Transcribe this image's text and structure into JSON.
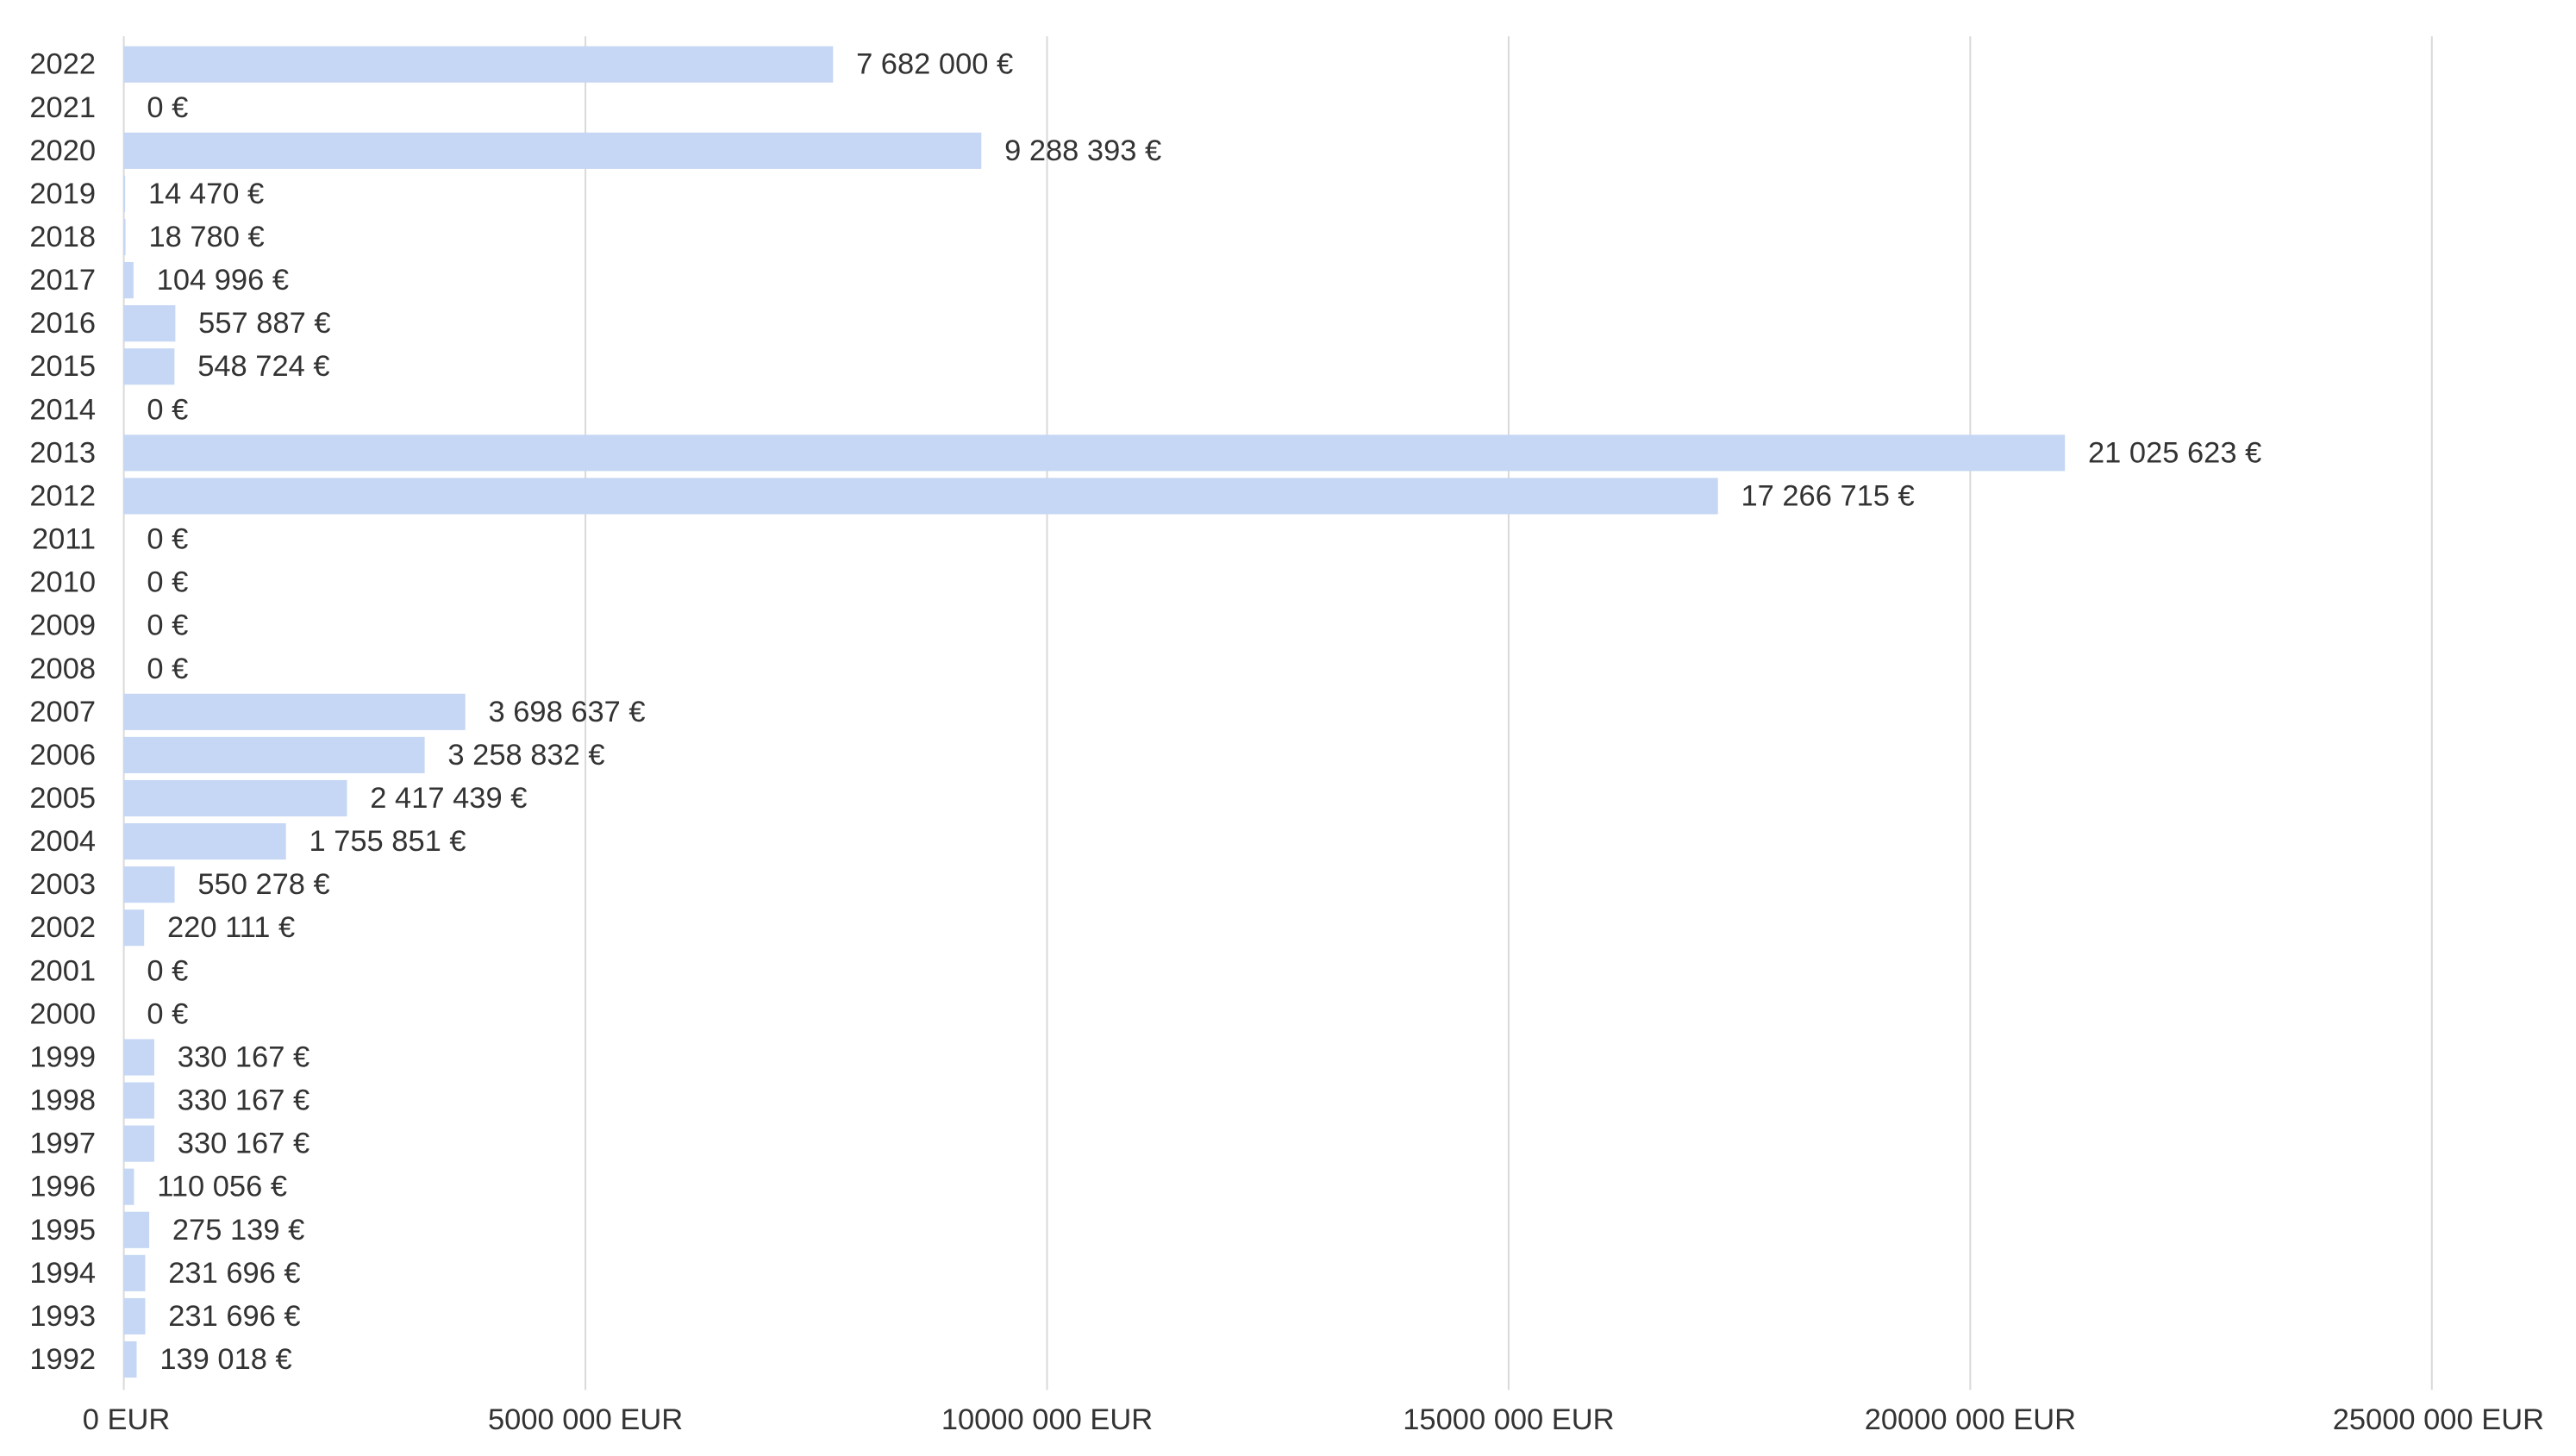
{
  "chart_data": {
    "type": "bar",
    "orientation": "horizontal",
    "title": "",
    "xlabel": "",
    "ylabel": "",
    "categories": [
      "2022",
      "2021",
      "2020",
      "2019",
      "2018",
      "2017",
      "2016",
      "2015",
      "2014",
      "2013",
      "2012",
      "2011",
      "2010",
      "2009",
      "2008",
      "2007",
      "2006",
      "2005",
      "2004",
      "2003",
      "2002",
      "2001",
      "2000",
      "1999",
      "1998",
      "1997",
      "1996",
      "1995",
      "1994",
      "1993",
      "1992"
    ],
    "values": [
      7682000,
      0,
      9288393,
      14470,
      18780,
      104996,
      557887,
      548724,
      0,
      21025623,
      17266715,
      0,
      0,
      0,
      0,
      3698637,
      3258832,
      2417439,
      1755851,
      550278,
      220111,
      0,
      0,
      330167,
      330167,
      330167,
      110056,
      275139,
      231696,
      231696,
      139018
    ],
    "value_labels": [
      "7 682 000 €",
      "0 €",
      "9 288 393 €",
      "14 470 €",
      "18 780 €",
      "104 996 €",
      "557 887 €",
      "548 724 €",
      "0 €",
      "21 025 623 €",
      "17 266 715 €",
      "0 €",
      "0 €",
      "0 €",
      "0 €",
      "3 698 637 €",
      "3 258 832 €",
      "2 417 439 €",
      "1 755 851 €",
      "550 278 €",
      "220 111 €",
      "0 €",
      "0 €",
      "330 167 €",
      "330 167 €",
      "330 167 €",
      "110 056 €",
      "275 139 €",
      "231 696 €",
      "231 696 €",
      "139 018 €"
    ],
    "xlim": [
      0,
      25000000
    ],
    "xticks": [
      0,
      5000000,
      10000000,
      15000000,
      20000000,
      25000000
    ],
    "xtick_labels": [
      "0 EUR",
      "5000 000 EUR",
      "10000 000 EUR",
      "15000 000 EUR",
      "20000 000 EUR",
      "25000 000 EUR"
    ],
    "grid": true,
    "legend": "none",
    "colors": {
      "bar": "#c5d7f4",
      "grid": "#d9d9d9",
      "text": "#333333"
    }
  }
}
